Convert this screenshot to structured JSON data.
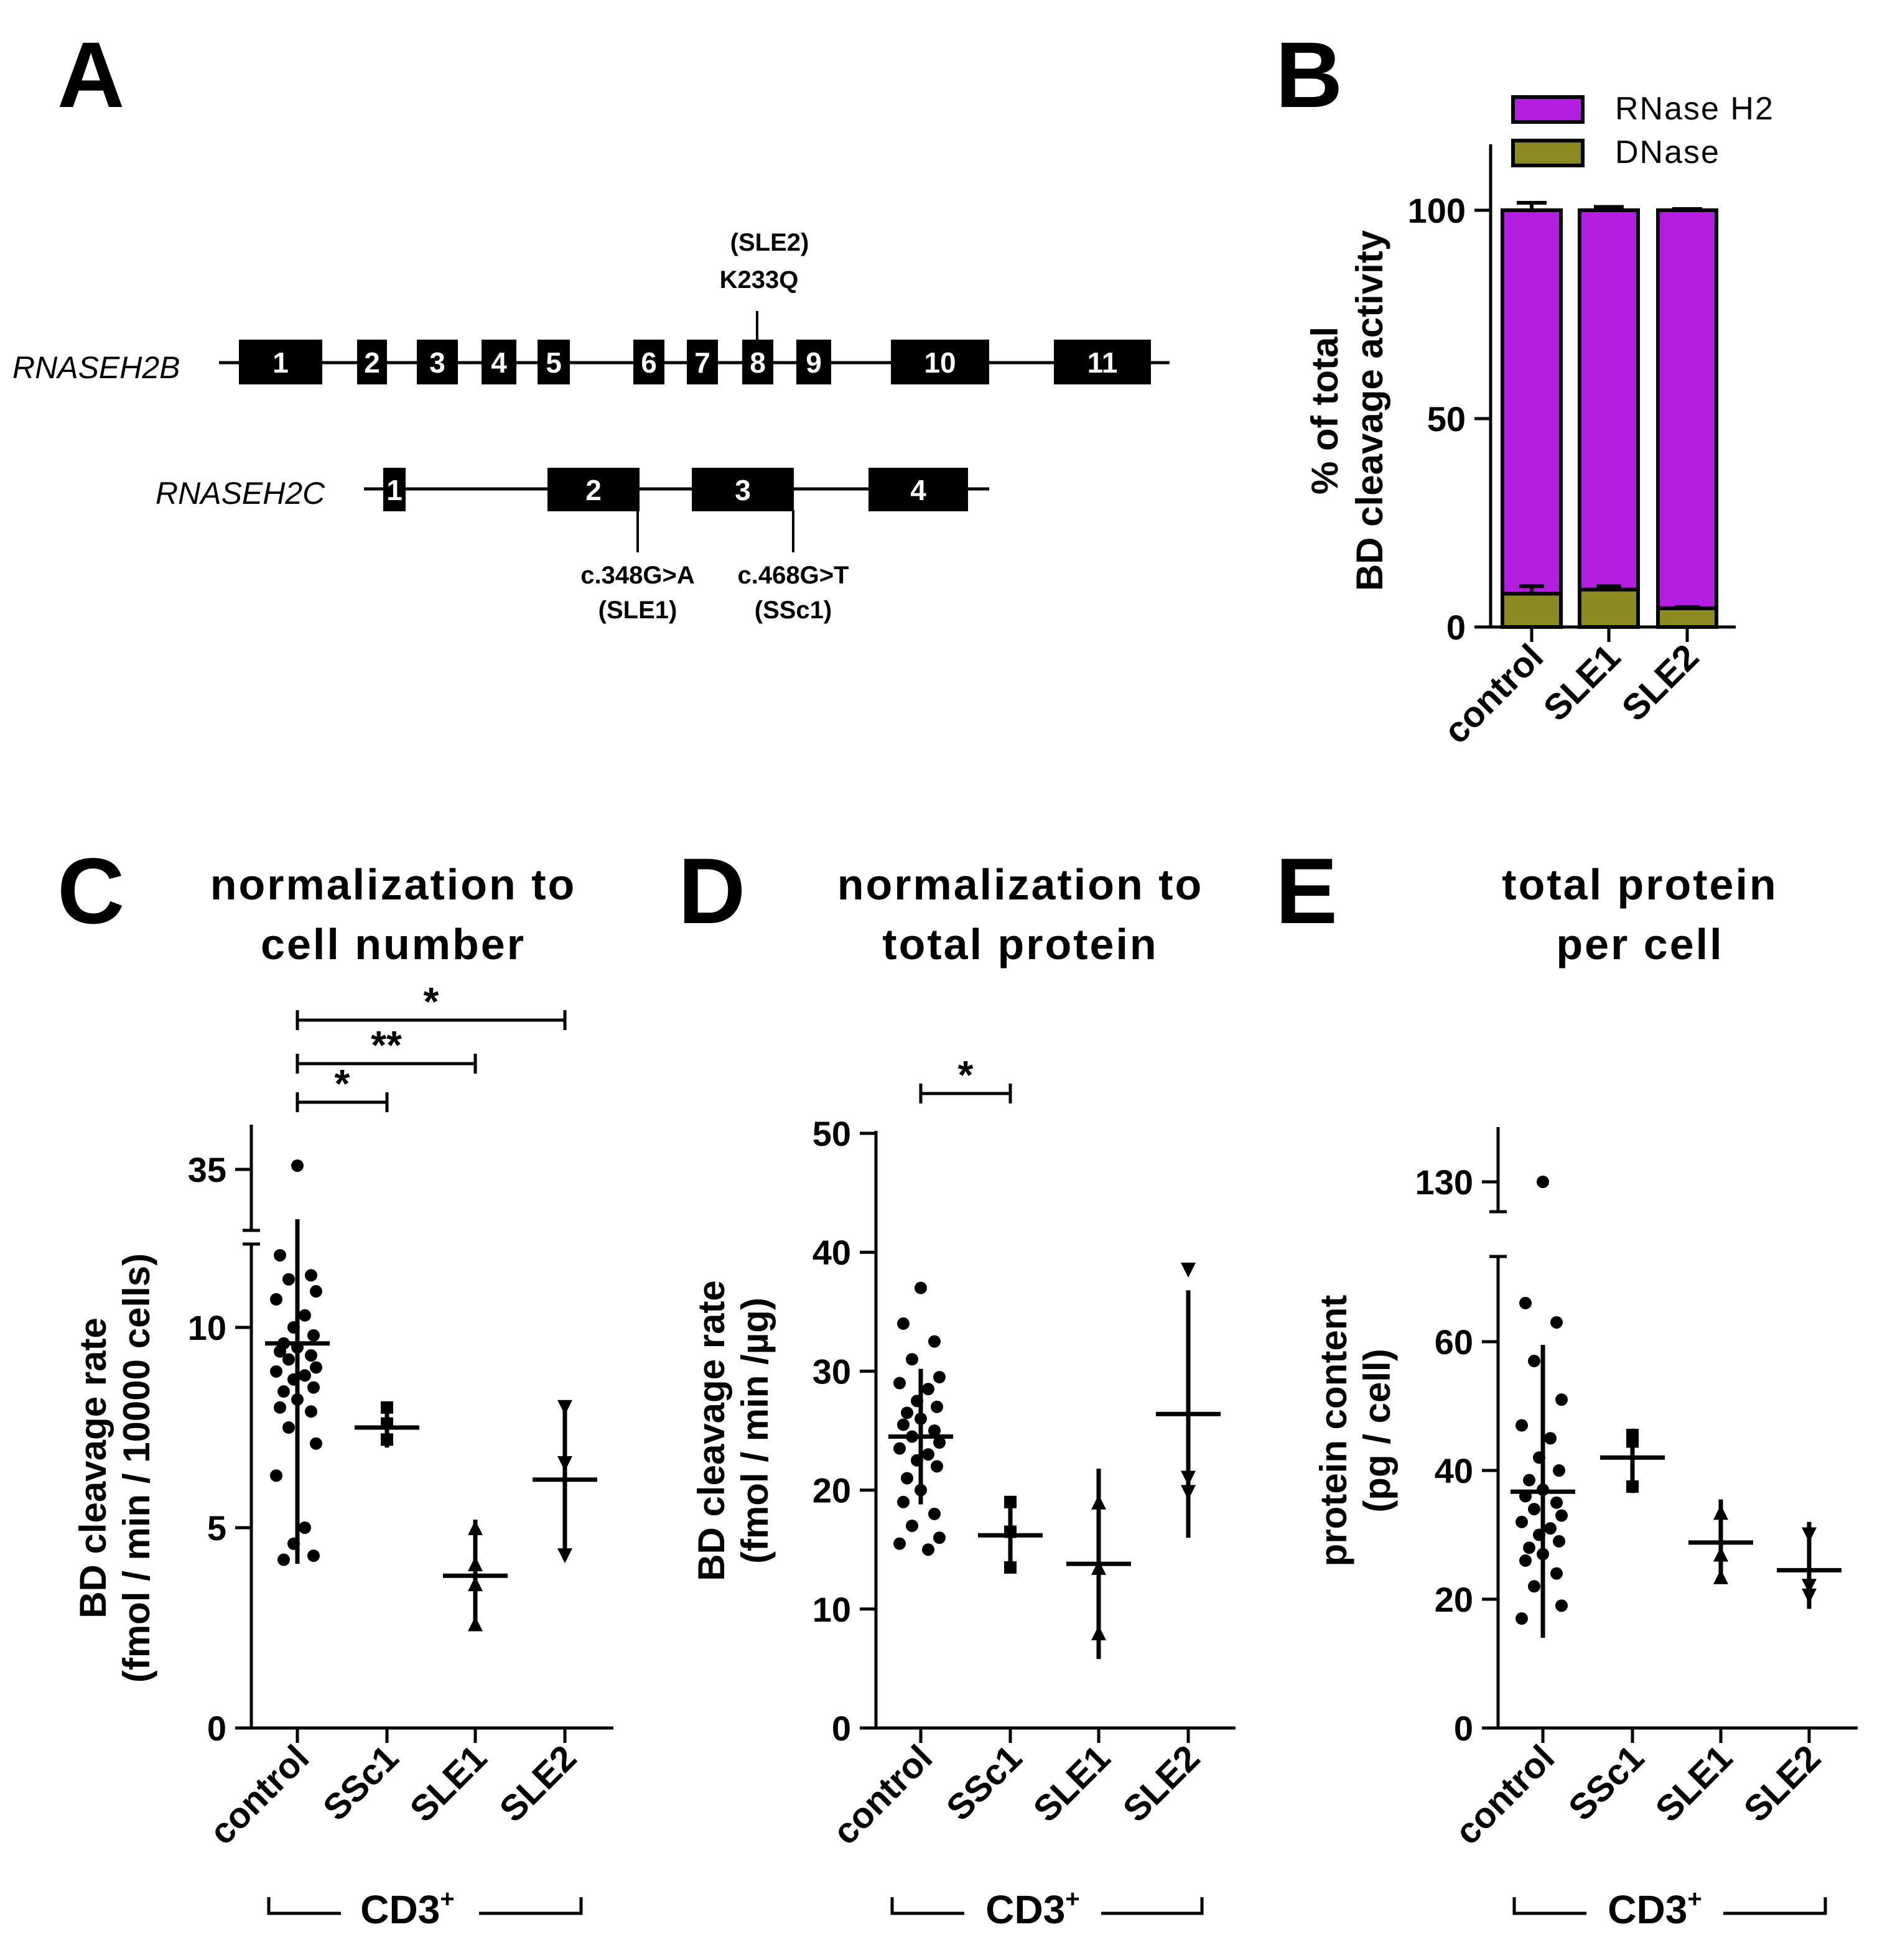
{
  "panels": {
    "A": {
      "label": "A"
    },
    "B": {
      "label": "B"
    },
    "C": {
      "label": "C"
    },
    "D": {
      "label": "D"
    },
    "E": {
      "label": "E"
    }
  },
  "gene_diagram": {
    "rnaseh2b": {
      "name": "RNASEH2B",
      "exons": [
        "1",
        "2",
        "3",
        "4",
        "5",
        "6",
        "7",
        "8",
        "9",
        "10",
        "11"
      ],
      "mutation": {
        "exon": "8",
        "line1": "(SLE2)",
        "line2": "K233Q"
      }
    },
    "rnaseh2c": {
      "name": "RNASEH2C",
      "exons": [
        "1",
        "2",
        "3",
        "4"
      ],
      "mutations": [
        {
          "exon": "2",
          "line1": "c.348G>A",
          "line2": "(SLE1)"
        },
        {
          "exon": "3",
          "line1": "c.468G>T",
          "line2": "(SSc1)"
        }
      ]
    }
  },
  "group_label": {
    "text": "CD3",
    "sup": "+"
  },
  "chart_data": [
    {
      "id": "B",
      "type": "bar",
      "stacked": true,
      "categories": [
        "control",
        "SLE1",
        "SLE2"
      ],
      "series": [
        {
          "name": "RNase H2",
          "color": "#b31ee0",
          "values": [
            92.0,
            91.0,
            95.5
          ],
          "errors": [
            1.8,
            0.8,
            0.3
          ]
        },
        {
          "name": "DNase",
          "color": "#8b8a1e",
          "values": [
            8.0,
            9.0,
            4.5
          ],
          "errors": [
            1.8,
            0.8,
            0.3
          ]
        }
      ],
      "ylabel_line1": "% of total",
      "ylabel_line2": "BD cleavage activity",
      "ylim": [
        0,
        115
      ],
      "yticks": [
        0,
        50,
        100
      ],
      "legend": "top-right"
    },
    {
      "id": "C",
      "type": "scatter",
      "title_line1": "normalization to",
      "title_line2": "cell number",
      "ylabel_line1": "BD cleavage rate",
      "ylabel_line2": "(fmol / min / 10000 cells)",
      "categories": [
        "control",
        "SSc1",
        "SLE1",
        "SLE2"
      ],
      "axis_break": {
        "lower": [
          0,
          13
        ],
        "upper_tick": 35
      },
      "yticks": [
        0,
        5,
        10,
        35
      ],
      "groups": [
        {
          "name": "control",
          "marker": "circle",
          "mean": 9.6,
          "sd_low": 4.1,
          "sd_high": 12.7,
          "points": [
            35.5,
            11.8,
            11.3,
            11.2,
            10.9,
            10.7,
            10.3,
            10.0,
            9.8,
            9.6,
            9.5,
            9.4,
            9.3,
            9.2,
            9.0,
            8.9,
            8.8,
            8.7,
            8.5,
            8.4,
            8.2,
            8.0,
            7.9,
            7.5,
            7.1,
            6.3,
            5.0,
            4.6,
            4.3,
            4.2
          ]
        },
        {
          "name": "SSc1",
          "marker": "square",
          "mean": 7.5,
          "sd_low": 7.0,
          "sd_high": 8.0,
          "points": [
            8.0,
            7.6,
            7.2
          ]
        },
        {
          "name": "SLE1",
          "marker": "triangle-up",
          "mean": 3.8,
          "sd_low": 2.5,
          "sd_high": 5.2,
          "points": [
            5.0,
            4.1,
            3.6,
            2.6
          ]
        },
        {
          "name": "SLE2",
          "marker": "triangle-down",
          "mean": 6.2,
          "sd_low": 4.2,
          "sd_high": 8.1,
          "points": [
            8.0,
            6.6,
            4.3
          ]
        }
      ],
      "significance": [
        {
          "from": "control",
          "to": "SSc1",
          "label": "*"
        },
        {
          "from": "control",
          "to": "SLE1",
          "label": "**"
        },
        {
          "from": "control",
          "to": "SLE2",
          "label": "*"
        }
      ]
    },
    {
      "id": "D",
      "type": "scatter",
      "title_line1": "normalization to",
      "title_line2": "total protein",
      "ylabel_line1": "BD cleavage rate",
      "ylabel_line2": "(fmol / min /µg)",
      "categories": [
        "control",
        "SSc1",
        "SLE1",
        "SLE2"
      ],
      "ylim": [
        0,
        50
      ],
      "yticks": [
        0,
        10,
        20,
        30,
        40,
        50
      ],
      "groups": [
        {
          "name": "control",
          "marker": "circle",
          "mean": 24.5,
          "sd_low": 18.8,
          "sd_high": 30.2,
          "points": [
            37.0,
            34.0,
            32.5,
            31.0,
            29.5,
            29.0,
            28.5,
            27.5,
            27.0,
            26.5,
            26.0,
            25.5,
            25.0,
            24.5,
            24.0,
            23.5,
            23.0,
            22.5,
            22.0,
            21.0,
            20.0,
            19.0,
            18.0,
            17.0,
            16.0,
            15.5,
            15.0
          ]
        },
        {
          "name": "SSc1",
          "marker": "square",
          "mean": 16.2,
          "sd_low": 13.2,
          "sd_high": 19.3,
          "points": [
            19.0,
            16.5,
            13.5
          ]
        },
        {
          "name": "SLE1",
          "marker": "triangle-up",
          "mean": 13.8,
          "sd_low": 5.8,
          "sd_high": 21.8,
          "points": [
            19.0,
            13.5,
            8.0
          ]
        },
        {
          "name": "SLE2",
          "marker": "triangle-down",
          "mean": 26.4,
          "sd_low": 16.0,
          "sd_high": 36.8,
          "points": [
            38.5,
            21.0,
            19.8
          ]
        }
      ],
      "significance": [
        {
          "from": "control",
          "to": "SSc1",
          "label": "*"
        }
      ]
    },
    {
      "id": "E",
      "type": "scatter",
      "title_line1": "total protein",
      "title_line2": "per cell",
      "ylabel_line1": "protein content",
      "ylabel_line2": "(pg / cell)",
      "categories": [
        "control",
        "SSc1",
        "SLE1",
        "SLE2"
      ],
      "axis_break": {
        "lower": [
          0,
          75
        ],
        "upper_tick": 130
      },
      "yticks": [
        0,
        20,
        40,
        60,
        130
      ],
      "groups": [
        {
          "name": "control",
          "marker": "circle",
          "mean": 36.7,
          "sd_low": 14.0,
          "sd_high": 59.5,
          "points": [
            130,
            66,
            63,
            57,
            51,
            47,
            45,
            42,
            40,
            38.5,
            37,
            36,
            35,
            34,
            33,
            32,
            31,
            30,
            29,
            28,
            27,
            26,
            24,
            22,
            19,
            17
          ]
        },
        {
          "name": "SSc1",
          "marker": "square",
          "mean": 42.0,
          "sd_low": 36.5,
          "sd_high": 46.5,
          "points": [
            45.5,
            44.5,
            37.5
          ]
        },
        {
          "name": "SLE1",
          "marker": "triangle-up",
          "mean": 28.8,
          "sd_low": 22.5,
          "sd_high": 35.5,
          "points": [
            33.5,
            27.0,
            23.5
          ]
        },
        {
          "name": "SLE2",
          "marker": "triangle-down",
          "mean": 24.5,
          "sd_low": 18.5,
          "sd_high": 32.0,
          "points": [
            30.0,
            22.0,
            20.5
          ]
        }
      ]
    }
  ]
}
